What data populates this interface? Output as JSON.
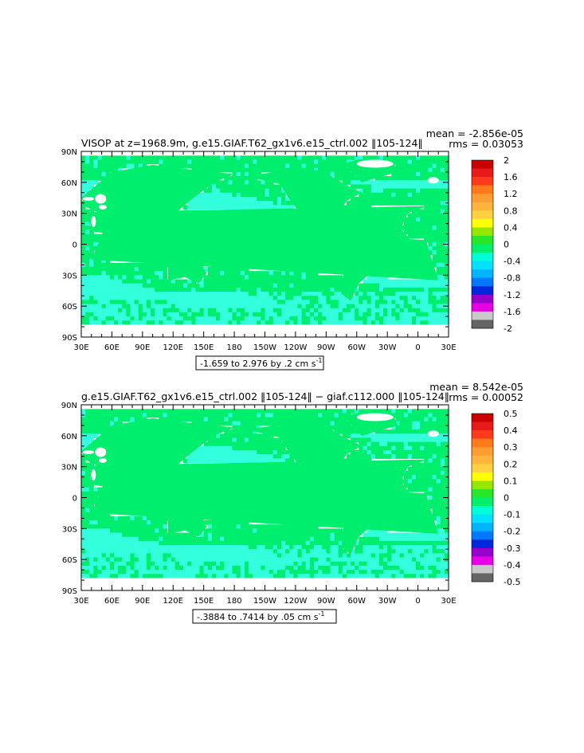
{
  "chart_data": [
    {
      "type": "heatmap",
      "title": "VISOP at z=1968.9m, g.e15.GIAF.T62_gx1v6.e15_ctrl.002 ‖105-124‖",
      "stats": [
        "mean = -2.856e-05",
        "rms = 0.03053"
      ],
      "x_ticks": [
        "30E",
        "60E",
        "90E",
        "120E",
        "150E",
        "180",
        "150W",
        "120W",
        "90W",
        "60W",
        "30W",
        "0",
        "30E"
      ],
      "y_ticks": [
        "90N",
        "60N",
        "30N",
        "0",
        "30S",
        "60S",
        "90S"
      ],
      "xlim": [
        30,
        390
      ],
      "ylim": [
        -90,
        90
      ],
      "contour_info": "-1.659 to 2.976 by .2 cm s",
      "contour_unit_exp": "-1",
      "colorbar": {
        "labels": [
          "2",
          "1.6",
          "1.2",
          "0.8",
          "0.4",
          "0",
          "-0.4",
          "-0.8",
          "-1.2",
          "-1.6",
          "-2"
        ],
        "colors": [
          "#c80000",
          "#e81a1a",
          "#ff3a1a",
          "#ff7a1a",
          "#ff9c32",
          "#ffb43c",
          "#ffd040",
          "#ffff00",
          "#96e600",
          "#28e628",
          "#00f06e",
          "#00ffd8",
          "#00e1ff",
          "#00b4ff",
          "#0078ff",
          "#0028dc",
          "#9600c8",
          "#e600e6",
          "#c8c8c8",
          "#646464"
        ]
      },
      "dominant_color": "#00ee6e",
      "secondary_color": "#33ffdd"
    },
    {
      "type": "heatmap",
      "title": "g.e15.GIAF.T62_gx1v6.e15_ctrl.002 ‖105-124‖ − giaf.c112.000 ‖105-124‖",
      "stats": [
        "mean = 8.542e-05",
        "rms = 0.00052"
      ],
      "x_ticks": [
        "30E",
        "60E",
        "90E",
        "120E",
        "150E",
        "180",
        "150W",
        "120W",
        "90W",
        "60W",
        "30W",
        "0",
        "30E"
      ],
      "y_ticks": [
        "90N",
        "60N",
        "30N",
        "0",
        "30S",
        "60S",
        "90S"
      ],
      "xlim": [
        30,
        390
      ],
      "ylim": [
        -90,
        90
      ],
      "contour_info": "-.3884 to .7414 by .05 cm s",
      "contour_unit_exp": "-1",
      "colorbar": {
        "labels": [
          "0.5",
          "0.4",
          "0.3",
          "0.2",
          "0.1",
          "0",
          "-0.1",
          "-0.2",
          "-0.3",
          "-0.4",
          "-0.5"
        ],
        "colors": [
          "#c80000",
          "#e81a1a",
          "#ff3a1a",
          "#ff7a1a",
          "#ff9c32",
          "#ffb43c",
          "#ffd040",
          "#ffff00",
          "#96e600",
          "#28e628",
          "#00f06e",
          "#00ffd8",
          "#00e1ff",
          "#00b4ff",
          "#0078ff",
          "#0028dc",
          "#9600c8",
          "#e600e6",
          "#c8c8c8",
          "#646464"
        ]
      },
      "dominant_color": "#00ee6e",
      "secondary_color": "#33ffdd"
    }
  ]
}
